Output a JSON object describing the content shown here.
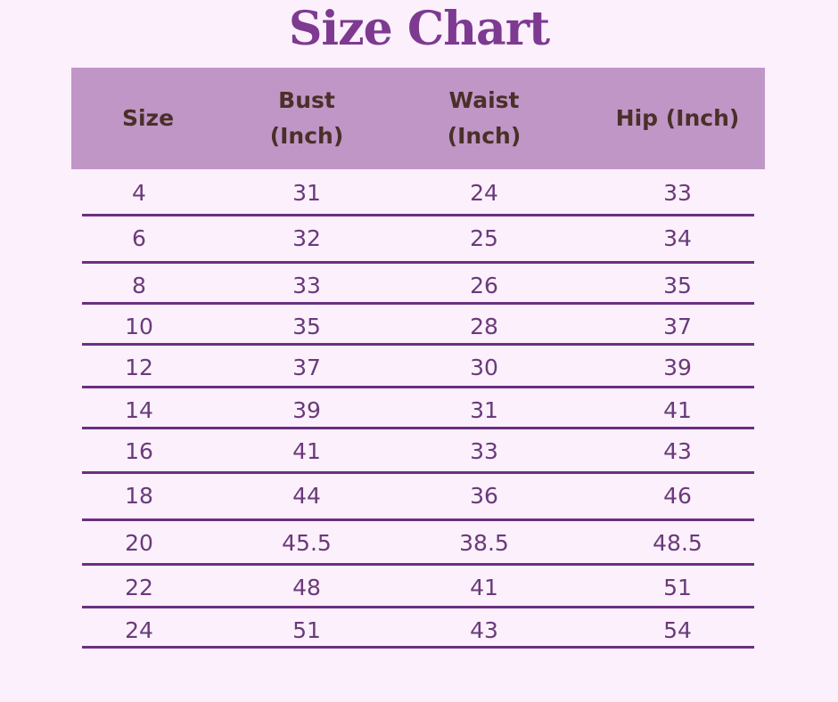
{
  "title": "Size Chart",
  "colors": {
    "background": "#fbf0fc",
    "header": "#c096c7",
    "title": "#7d3a90",
    "lines": "#6b2f80"
  },
  "columns": [
    "Size",
    "Bust (Inch)",
    "Waist (Inch)",
    "Hip (Inch)"
  ],
  "rows": [
    [
      "4",
      "31",
      "24",
      "33"
    ],
    [
      "6",
      "32",
      "25",
      "34"
    ],
    [
      "8",
      "33",
      "26",
      "35"
    ],
    [
      "10",
      "35",
      "28",
      "37"
    ],
    [
      "12",
      "37",
      "30",
      "39"
    ],
    [
      "14",
      "39",
      "31",
      "41"
    ],
    [
      "16",
      "41",
      "33",
      "43"
    ],
    [
      "18",
      "44",
      "36",
      "46"
    ],
    [
      "20",
      "45.5",
      "38.5",
      "48.5"
    ],
    [
      "22",
      "48",
      "41",
      "51"
    ],
    [
      "24",
      "51",
      "43",
      "54"
    ]
  ]
}
